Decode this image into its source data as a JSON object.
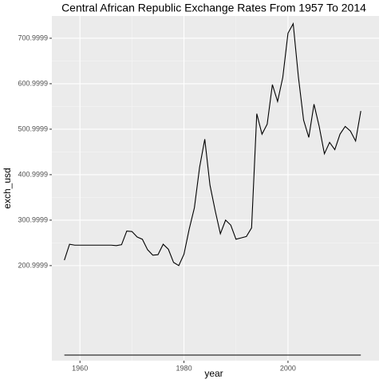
{
  "chart_data": {
    "type": "line",
    "title": "Central African Republic Exchange Rates From 1957 To 2014",
    "x_label": "year",
    "y_label": "exch_usd",
    "x": [
      1957,
      1958,
      1959,
      1960,
      1961,
      1962,
      1963,
      1964,
      1965,
      1966,
      1967,
      1968,
      1969,
      1970,
      1971,
      1972,
      1973,
      1974,
      1975,
      1976,
      1977,
      1978,
      1979,
      1980,
      1981,
      1982,
      1983,
      1984,
      1985,
      1986,
      1987,
      1988,
      1989,
      1990,
      1991,
      1992,
      1993,
      1994,
      1995,
      1996,
      1997,
      1998,
      1999,
      2000,
      2001,
      2002,
      2003,
      2004,
      2005,
      2006,
      2007,
      2008,
      2009,
      2010,
      2011,
      2012,
      2013,
      2014
    ],
    "series": [
      {
        "name": "exch_usd",
        "color": "#000000",
        "values": [
          213,
          248,
          246,
          246,
          246,
          246,
          246,
          246,
          246,
          246,
          245,
          247,
          277,
          276,
          264,
          259,
          236,
          224,
          225,
          248,
          237,
          208,
          201,
          226,
          281,
          328,
          417,
          479,
          378,
          322,
          271,
          301,
          290,
          259,
          262,
          265,
          284,
          535,
          490,
          512,
          599,
          562,
          615,
          712,
          733,
          616,
          521,
          483,
          556,
          507,
          447,
          472,
          456,
          490,
          507,
          497,
          475,
          541
        ]
      }
    ],
    "xlim": [
      1954.6,
      2017.5
    ],
    "xticks": [
      1960,
      1980,
      2000
    ],
    "ylim": [
      -8,
      750
    ],
    "yticks": [
      200.9999,
      300.9999,
      400.9999,
      500.9999,
      600.9999,
      700.9999
    ],
    "grid": true
  }
}
